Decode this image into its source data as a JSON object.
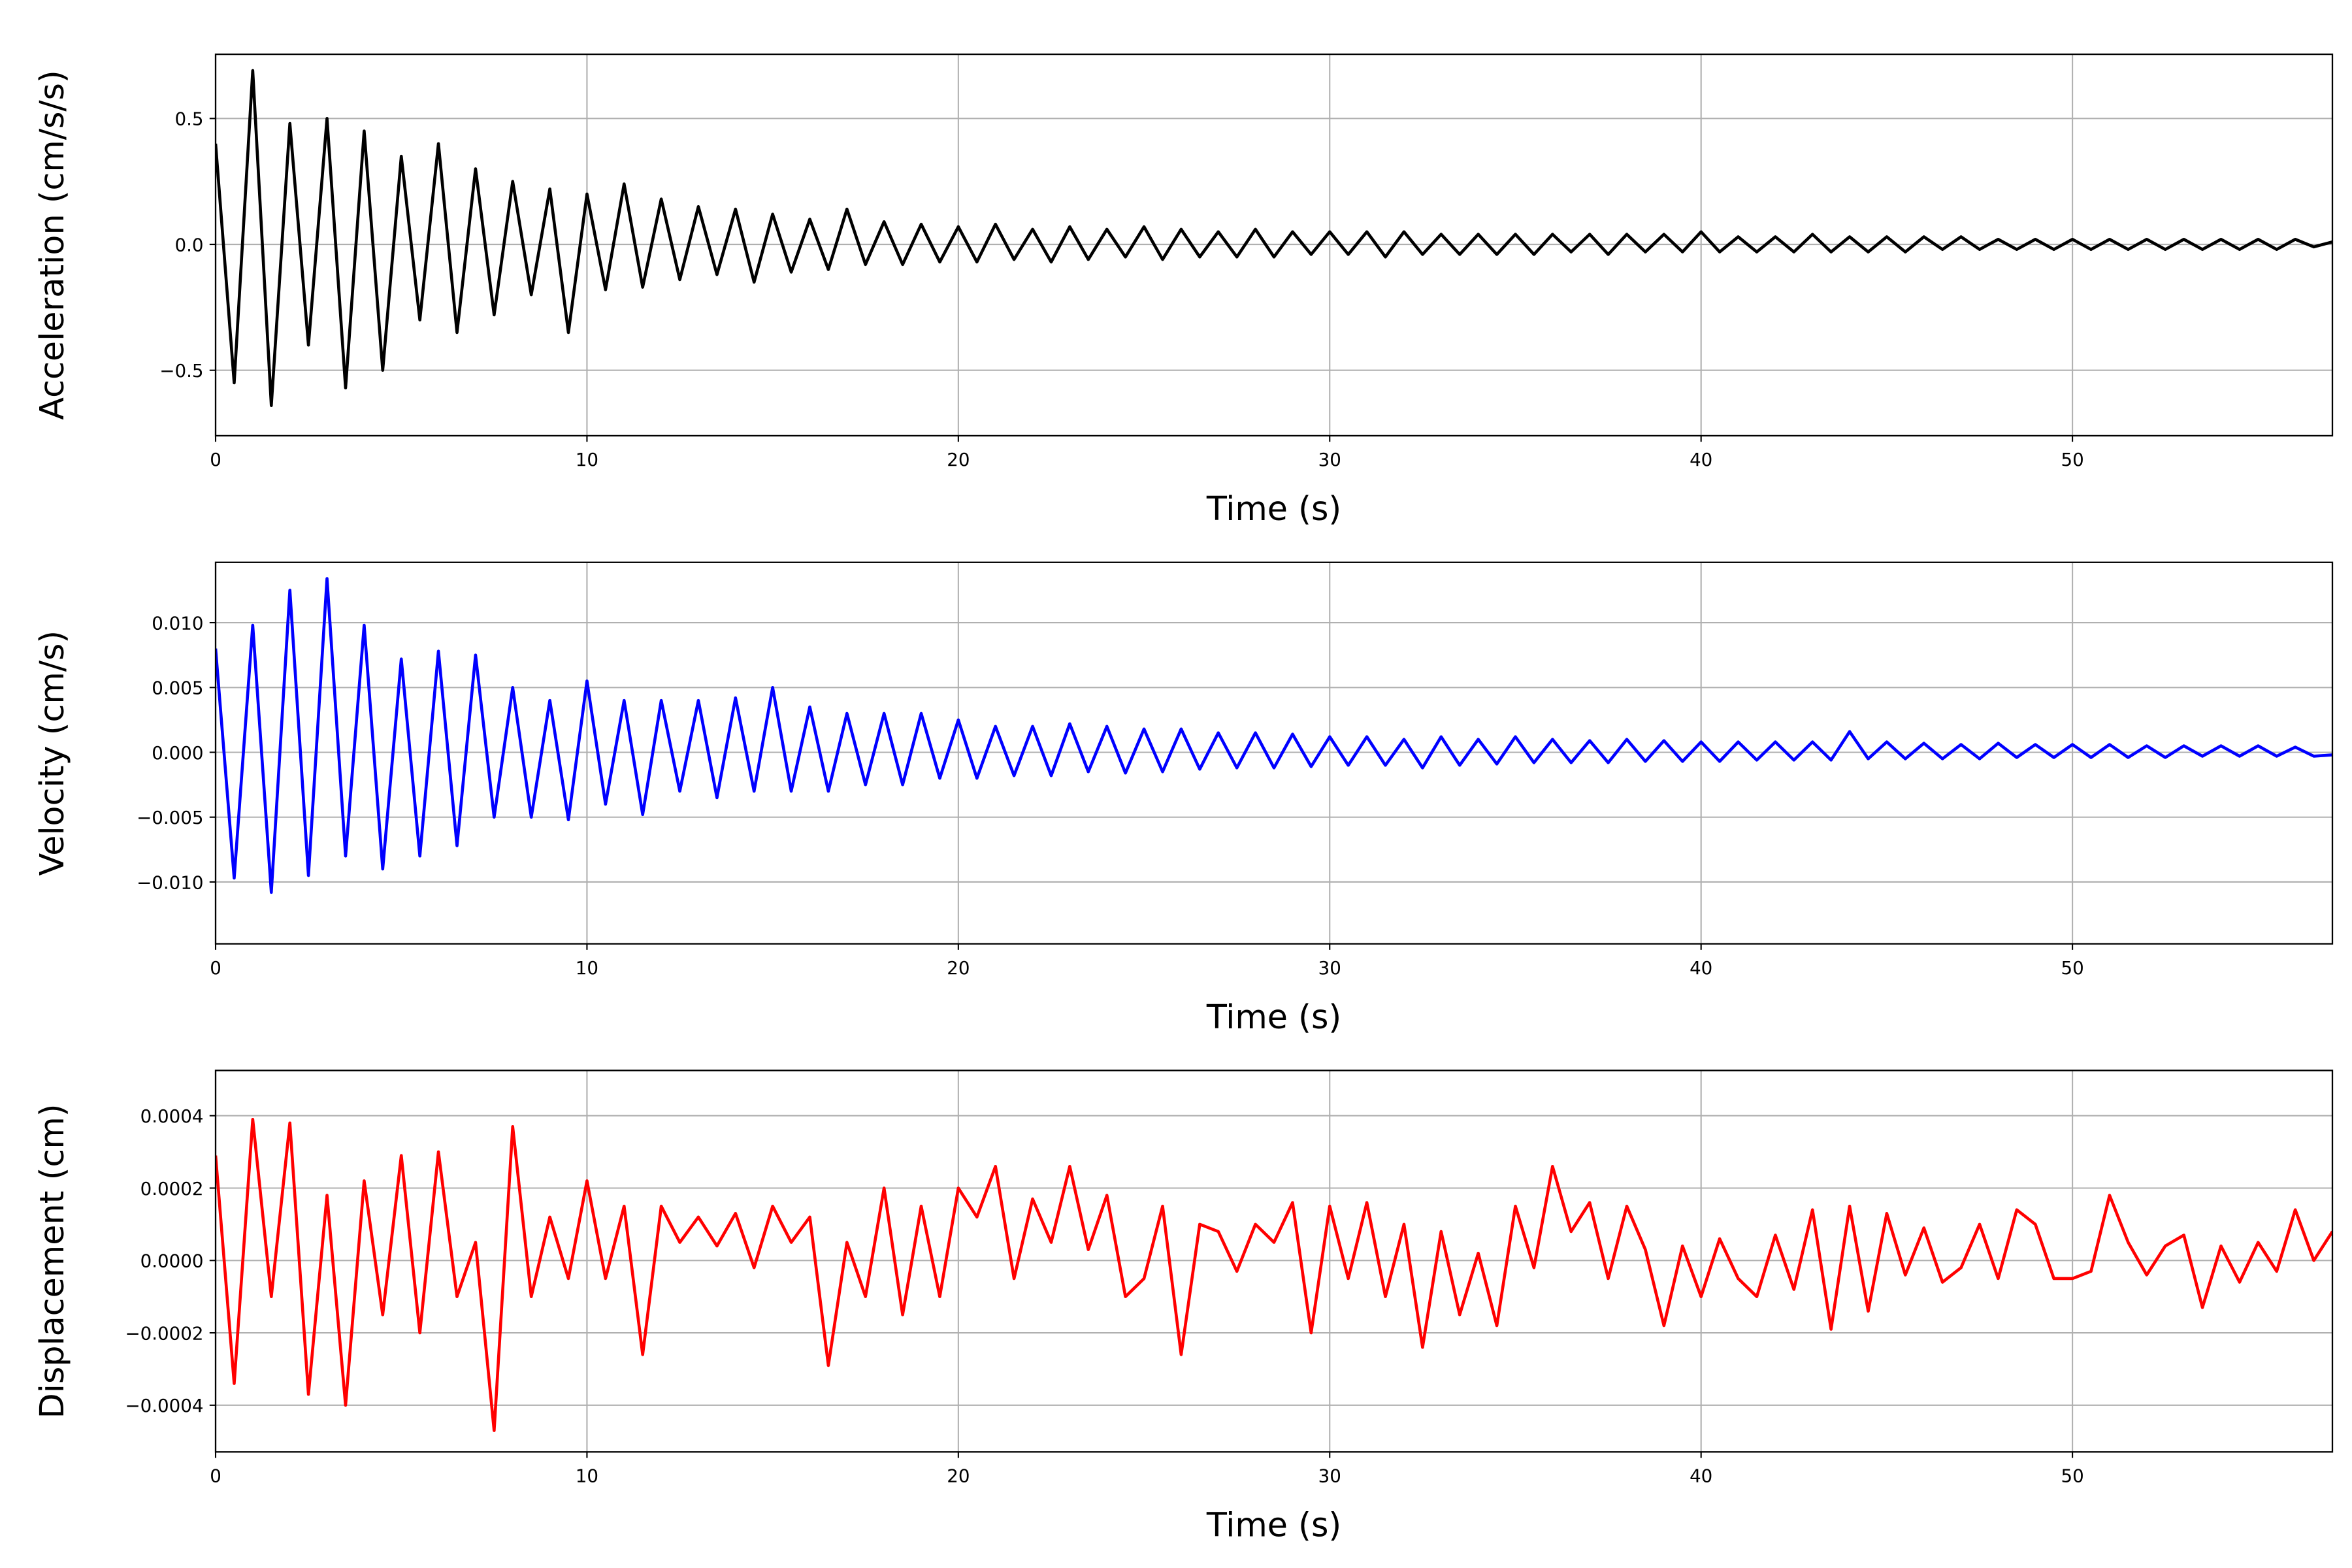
{
  "chart_data": [
    {
      "type": "line",
      "title": "",
      "xlabel": "Time (s)",
      "ylabel": "Acceleration (cm/s/s)",
      "xlim": [
        0,
        57
      ],
      "ylim": [
        -0.76,
        0.755
      ],
      "xticks": [
        0,
        10,
        20,
        30,
        40,
        50
      ],
      "xtick_labels": [
        "0",
        "10",
        "20",
        "30",
        "40",
        "50"
      ],
      "yticks": [
        -0.5,
        0.0,
        0.5
      ],
      "ytick_labels": [
        "−0.5",
        "0.0",
        "0.5"
      ],
      "grid": true,
      "color": "#000000",
      "x_start": 0,
      "x_step": 0.5,
      "values": [
        0.4,
        -0.55,
        0.69,
        -0.64,
        0.48,
        -0.4,
        0.5,
        -0.57,
        0.45,
        -0.5,
        0.35,
        -0.3,
        0.4,
        -0.35,
        0.3,
        -0.28,
        0.25,
        -0.2,
        0.22,
        -0.35,
        0.2,
        -0.18,
        0.24,
        -0.17,
        0.18,
        -0.14,
        0.15,
        -0.12,
        0.14,
        -0.15,
        0.12,
        -0.11,
        0.1,
        -0.1,
        0.14,
        -0.08,
        0.09,
        -0.08,
        0.08,
        -0.07,
        0.07,
        -0.07,
        0.08,
        -0.06,
        0.06,
        -0.07,
        0.07,
        -0.06,
        0.06,
        -0.05,
        0.07,
        -0.06,
        0.06,
        -0.05,
        0.05,
        -0.05,
        0.06,
        -0.05,
        0.05,
        -0.04,
        0.05,
        -0.04,
        0.05,
        -0.05,
        0.05,
        -0.04,
        0.04,
        -0.04,
        0.04,
        -0.04,
        0.04,
        -0.04,
        0.04,
        -0.03,
        0.04,
        -0.04,
        0.04,
        -0.03,
        0.04,
        -0.03,
        0.05,
        -0.03,
        0.03,
        -0.03,
        0.03,
        -0.03,
        0.04,
        -0.03,
        0.03,
        -0.03,
        0.03,
        -0.03,
        0.03,
        -0.02,
        0.03,
        -0.02,
        0.02,
        -0.02,
        0.02,
        -0.02,
        0.02,
        -0.02,
        0.02,
        -0.02,
        0.02,
        -0.02,
        0.02,
        -0.02,
        0.02,
        -0.02,
        0.02,
        -0.02,
        0.02,
        -0.01,
        0.01
      ]
    },
    {
      "type": "line",
      "title": "",
      "xlabel": "Time (s)",
      "ylabel": "Velocity (cm/s)",
      "xlim": [
        0,
        57
      ],
      "ylim": [
        -0.01477,
        0.01465
      ],
      "xticks": [
        0,
        10,
        20,
        30,
        40,
        50
      ],
      "xtick_labels": [
        "0",
        "10",
        "20",
        "30",
        "40",
        "50"
      ],
      "yticks": [
        -0.01,
        -0.005,
        0.0,
        0.005,
        0.01
      ],
      "ytick_labels": [
        "−0.010",
        "−0.005",
        "0.000",
        "0.005",
        "0.010"
      ],
      "grid": true,
      "color": "#0000ff",
      "x_start": 0,
      "x_step": 0.5,
      "values": [
        0.008,
        -0.0097,
        0.0098,
        -0.0108,
        0.0125,
        -0.0095,
        0.0134,
        -0.008,
        0.0098,
        -0.009,
        0.0072,
        -0.008,
        0.0078,
        -0.0072,
        0.0075,
        -0.005,
        0.005,
        -0.005,
        0.004,
        -0.0052,
        0.0055,
        -0.004,
        0.004,
        -0.0048,
        0.004,
        -0.003,
        0.004,
        -0.0035,
        0.0042,
        -0.003,
        0.005,
        -0.003,
        0.0035,
        -0.003,
        0.003,
        -0.0025,
        0.003,
        -0.0025,
        0.003,
        -0.002,
        0.0025,
        -0.002,
        0.002,
        -0.0018,
        0.002,
        -0.0018,
        0.0022,
        -0.0015,
        0.002,
        -0.0016,
        0.0018,
        -0.0015,
        0.0018,
        -0.0013,
        0.0015,
        -0.0012,
        0.0015,
        -0.0012,
        0.0014,
        -0.0011,
        0.0012,
        -0.001,
        0.0012,
        -0.001,
        0.001,
        -0.0012,
        0.0012,
        -0.001,
        0.001,
        -0.0009,
        0.0012,
        -0.0008,
        0.001,
        -0.0008,
        0.0009,
        -0.0008,
        0.001,
        -0.0007,
        0.0009,
        -0.0007,
        0.0008,
        -0.0007,
        0.0008,
        -0.0006,
        0.0008,
        -0.0006,
        0.0008,
        -0.0006,
        0.0016,
        -0.0005,
        0.0008,
        -0.0005,
        0.0007,
        -0.0005,
        0.0006,
        -0.0005,
        0.0007,
        -0.0004,
        0.0006,
        -0.0004,
        0.0006,
        -0.0004,
        0.0006,
        -0.0004,
        0.0005,
        -0.0004,
        0.0005,
        -0.0003,
        0.0005,
        -0.0003,
        0.0005,
        -0.0003,
        0.0004,
        -0.0003,
        -0.0002
      ]
    },
    {
      "type": "line",
      "title": "",
      "xlabel": "Time (s)",
      "ylabel": "Displacement (cm)",
      "xlim": [
        0,
        57
      ],
      "ylim": [
        -0.000529,
        0.000525
      ],
      "xticks": [
        0,
        10,
        20,
        30,
        40,
        50
      ],
      "xtick_labels": [
        "0",
        "10",
        "20",
        "30",
        "40",
        "50"
      ],
      "yticks": [
        -0.0004,
        -0.0002,
        0.0,
        0.0002,
        0.0004
      ],
      "ytick_labels": [
        "−0.0004",
        "−0.0002",
        "0.0000",
        "0.0002",
        "0.0004"
      ],
      "grid": true,
      "color": "#ff0000",
      "x_start": 0,
      "x_step": 0.5,
      "values": [
        0.00029,
        -0.00034,
        0.00039,
        -0.0001,
        0.00038,
        -0.00037,
        0.00018,
        -0.0004,
        0.00022,
        -0.00015,
        0.00029,
        -0.0002,
        0.0003,
        -0.0001,
        5e-05,
        -0.00047,
        0.00037,
        -0.0001,
        0.00012,
        -5e-05,
        0.00022,
        -5e-05,
        0.00015,
        -0.00026,
        0.00015,
        5e-05,
        0.00012,
        4e-05,
        0.00013,
        -2e-05,
        0.00015,
        5e-05,
        0.00012,
        -0.00029,
        5e-05,
        -0.0001,
        0.0002,
        -0.00015,
        0.00015,
        -0.0001,
        0.0002,
        0.00012,
        0.00026,
        -5e-05,
        0.00017,
        5e-05,
        0.00026,
        3e-05,
        0.00018,
        -0.0001,
        -5e-05,
        0.00015,
        -0.00026,
        0.0001,
        8e-05,
        -3e-05,
        0.0001,
        5e-05,
        0.00016,
        -0.0002,
        0.00015,
        -5e-05,
        0.00016,
        -0.0001,
        0.0001,
        -0.00024,
        8e-05,
        -0.00015,
        2e-05,
        -0.00018,
        0.00015,
        -2e-05,
        0.00026,
        8e-05,
        0.00016,
        -5e-05,
        0.00015,
        3e-05,
        -0.00018,
        4e-05,
        -0.0001,
        6e-05,
        -5e-05,
        -0.0001,
        7e-05,
        -8e-05,
        0.00014,
        -0.00019,
        0.00015,
        -0.00014,
        0.00013,
        -4e-05,
        9e-05,
        -6e-05,
        -2e-05,
        0.0001,
        -5e-05,
        0.00014,
        0.0001,
        -5e-05,
        -5e-05,
        -3e-05,
        0.00018,
        5e-05,
        -4e-05,
        4e-05,
        7e-05,
        -0.00013,
        4e-05,
        -6e-05,
        5e-05,
        -3e-05,
        0.00014,
        0.0,
        8e-05
      ]
    }
  ]
}
